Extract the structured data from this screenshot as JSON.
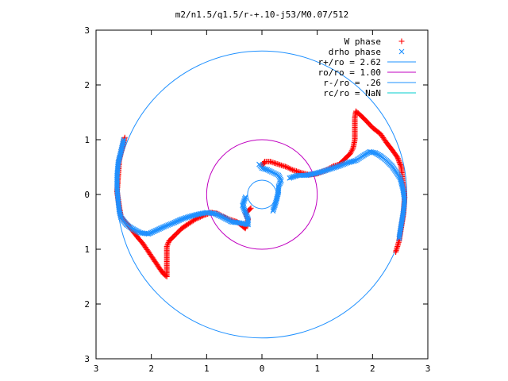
{
  "chart_data": {
    "type": "scatter",
    "title": "m2/n1.5/q1.5/r-+.10-j53/M0.07/512",
    "xlabel": "",
    "ylabel": "",
    "xlim": [
      -3,
      3
    ],
    "ylim": [
      -3,
      3
    ],
    "x_tick_values": [
      -3,
      -2,
      -1,
      0,
      1,
      2,
      3
    ],
    "x_tick_labels": [
      "3",
      "2",
      "1",
      "0",
      "1",
      "2",
      "3"
    ],
    "y_tick_values": [
      3,
      2,
      1,
      0,
      -1,
      -2,
      -3
    ],
    "y_tick_labels": [
      "3",
      "2",
      "1",
      "0",
      "1",
      "2",
      "3"
    ],
    "grid": false,
    "legend_position": "top-right",
    "series": [
      {
        "name": "W phase",
        "marker": "+",
        "color": "#ff0000",
        "points": [
          [
            -2.48,
            1.04
          ],
          [
            -2.52,
            0.88
          ],
          [
            -2.58,
            0.62
          ],
          [
            -2.6,
            0.32
          ],
          [
            -2.62,
            0.05
          ],
          [
            -2.58,
            -0.22
          ],
          [
            -2.55,
            -0.4
          ],
          [
            -2.45,
            -0.52
          ],
          [
            -2.35,
            -0.65
          ],
          [
            -2.25,
            -0.78
          ],
          [
            -2.15,
            -0.9
          ],
          [
            -2.05,
            -1.05
          ],
          [
            -1.95,
            -1.2
          ],
          [
            -1.85,
            -1.35
          ],
          [
            -1.78,
            -1.45
          ],
          [
            -1.72,
            -1.5
          ],
          [
            -1.72,
            -1.35
          ],
          [
            -1.72,
            -1.15
          ],
          [
            -1.72,
            -0.95
          ],
          [
            -1.68,
            -0.85
          ],
          [
            -1.58,
            -0.75
          ],
          [
            -1.45,
            -0.62
          ],
          [
            -1.35,
            -0.55
          ],
          [
            -1.2,
            -0.45
          ],
          [
            -1.05,
            -0.38
          ],
          [
            -0.92,
            -0.33
          ],
          [
            -0.8,
            -0.35
          ],
          [
            -0.7,
            -0.4
          ],
          [
            -0.6,
            -0.45
          ],
          [
            -0.45,
            -0.5
          ],
          [
            -0.35,
            -0.58
          ],
          [
            -0.3,
            -0.62
          ],
          [
            -0.25,
            -0.45
          ],
          [
            -0.3,
            -0.35
          ],
          [
            -0.2,
            -0.25
          ],
          [
            0.0,
            0.52
          ],
          [
            0.05,
            0.6
          ],
          [
            0.15,
            0.6
          ],
          [
            0.3,
            0.55
          ],
          [
            0.45,
            0.5
          ],
          [
            0.55,
            0.45
          ],
          [
            0.7,
            0.4
          ],
          [
            0.85,
            0.36
          ],
          [
            1.0,
            0.38
          ],
          [
            1.15,
            0.44
          ],
          [
            1.3,
            0.52
          ],
          [
            1.4,
            0.55
          ],
          [
            1.5,
            0.65
          ],
          [
            1.6,
            0.75
          ],
          [
            1.65,
            0.85
          ],
          [
            1.68,
            1.0
          ],
          [
            1.68,
            1.2
          ],
          [
            1.68,
            1.4
          ],
          [
            1.7,
            1.52
          ],
          [
            1.78,
            1.45
          ],
          [
            1.88,
            1.35
          ],
          [
            2.0,
            1.22
          ],
          [
            2.15,
            1.1
          ],
          [
            2.25,
            0.95
          ],
          [
            2.35,
            0.82
          ],
          [
            2.45,
            0.68
          ],
          [
            2.52,
            0.5
          ],
          [
            2.55,
            0.2
          ],
          [
            2.58,
            -0.05
          ],
          [
            2.56,
            -0.35
          ],
          [
            2.52,
            -0.6
          ],
          [
            2.48,
            -0.85
          ],
          [
            2.42,
            -1.05
          ]
        ]
      },
      {
        "name": "drho phase",
        "marker": "x",
        "color": "#1e90ff",
        "points": [
          [
            -2.5,
            1.0
          ],
          [
            -2.55,
            0.78
          ],
          [
            -2.6,
            0.58
          ],
          [
            -2.62,
            0.35
          ],
          [
            -2.62,
            0.1
          ],
          [
            -2.6,
            -0.12
          ],
          [
            -2.58,
            -0.3
          ],
          [
            -2.55,
            -0.42
          ],
          [
            -2.45,
            -0.55
          ],
          [
            -2.35,
            -0.62
          ],
          [
            -2.2,
            -0.7
          ],
          [
            -2.05,
            -0.72
          ],
          [
            -1.9,
            -0.65
          ],
          [
            -1.75,
            -0.58
          ],
          [
            -1.6,
            -0.52
          ],
          [
            -1.45,
            -0.45
          ],
          [
            -1.3,
            -0.4
          ],
          [
            -1.15,
            -0.36
          ],
          [
            -1.0,
            -0.33
          ],
          [
            -0.85,
            -0.35
          ],
          [
            -0.7,
            -0.42
          ],
          [
            -0.55,
            -0.5
          ],
          [
            -0.4,
            -0.52
          ],
          [
            -0.25,
            -0.55
          ],
          [
            -0.25,
            -0.45
          ],
          [
            -0.35,
            -0.2
          ],
          [
            -0.3,
            -0.05
          ],
          [
            -0.05,
            0.55
          ],
          [
            0.0,
            0.48
          ],
          [
            0.1,
            0.45
          ],
          [
            0.2,
            0.4
          ],
          [
            0.3,
            0.35
          ],
          [
            0.35,
            0.25
          ],
          [
            0.3,
            0.15
          ],
          [
            0.3,
            0.05
          ],
          [
            0.25,
            -0.15
          ],
          [
            0.2,
            -0.3
          ],
          [
            0.5,
            0.3
          ],
          [
            0.65,
            0.35
          ],
          [
            0.8,
            0.35
          ],
          [
            0.95,
            0.38
          ],
          [
            1.1,
            0.42
          ],
          [
            1.25,
            0.47
          ],
          [
            1.4,
            0.52
          ],
          [
            1.55,
            0.58
          ],
          [
            1.7,
            0.62
          ],
          [
            1.85,
            0.72
          ],
          [
            1.95,
            0.78
          ],
          [
            2.05,
            0.76
          ],
          [
            2.15,
            0.7
          ],
          [
            2.25,
            0.62
          ],
          [
            2.35,
            0.52
          ],
          [
            2.42,
            0.42
          ],
          [
            2.5,
            0.3
          ],
          [
            2.55,
            0.1
          ],
          [
            2.58,
            -0.1
          ],
          [
            2.56,
            -0.3
          ],
          [
            2.52,
            -0.55
          ],
          [
            2.48,
            -0.8
          ]
        ]
      },
      {
        "name": "r+/ro = 2.62",
        "type": "circle",
        "radius": 2.62,
        "color": "#1e90ff"
      },
      {
        "name": "ro/ro = 1.00",
        "type": "circle",
        "radius": 1.0,
        "color": "#c000c0"
      },
      {
        "name": "r-/ro = .26",
        "type": "circle",
        "radius": 0.26,
        "color": "#1e90ff"
      },
      {
        "name": "rc/ro = NaN",
        "type": "line",
        "color": "#00cccc"
      }
    ]
  }
}
